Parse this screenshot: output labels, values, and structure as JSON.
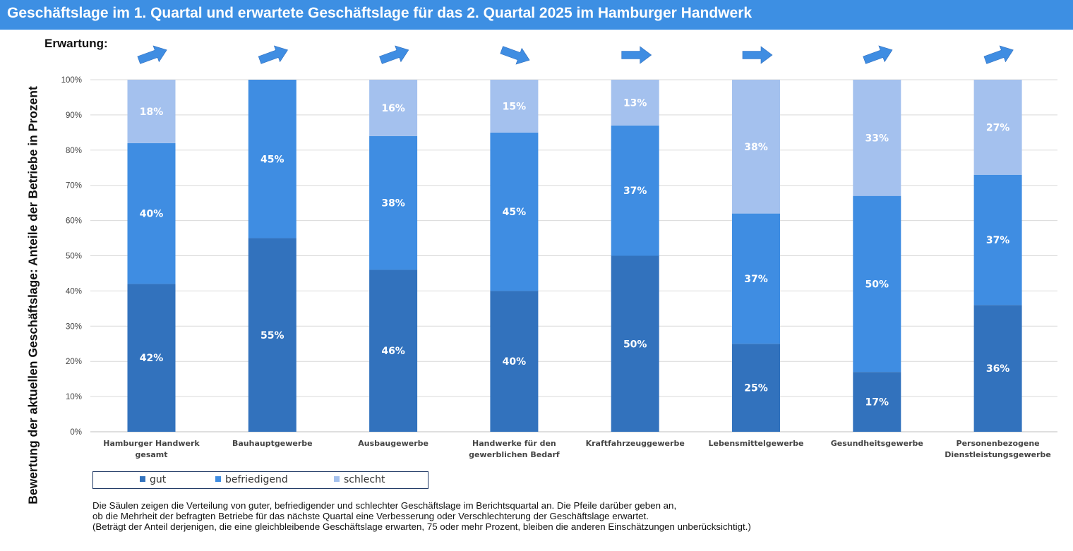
{
  "header": {
    "title": "Geschäftslage im 1. Quartal und erwartete Geschäftslage für das 2. Quartal 2025 im Hamburger Handwerk"
  },
  "expectation_label": "Erwartung:",
  "colors": {
    "header_bg": "#3d8fe3",
    "gut": "#3272bd",
    "befriedigend": "#3f8de2",
    "schlecht": "#a4c1ee",
    "arrow": "#3f8de2",
    "grid": "#d9d9d9"
  },
  "footnote": {
    "line1": "Die Säulen zeigen die Verteilung von guter, befriedigender und schlechter Geschäftslage im Berichtsquartal an. Die Pfeile darüber geben an,",
    "line2": "ob die Mehrheit der befragten Betriebe für das nächste Quartal eine Verbesserung oder Verschlechterung der Geschäftslage erwartet.",
    "line3": "(Beträgt der Anteil derjenigen, die eine gleichbleibende Geschäftslage erwarten, 75 oder mehr Prozent,  bleiben die anderen Einschätzungen unberücksichtigt.)"
  },
  "chart_data": {
    "type": "bar",
    "stacked": true,
    "title": "Geschäftslage im 1. Quartal und erwartete Geschäftslage für das 2. Quartal 2025 im Hamburger Handwerk",
    "ylabel": "Bewertung der aktuellen Geschäftslage: Anteile der Betriebe in Prozent",
    "ylim": [
      0,
      100
    ],
    "yticks": [
      "0%",
      "10%",
      "20%",
      "30%",
      "40%",
      "50%",
      "60%",
      "70%",
      "80%",
      "90%",
      "100%"
    ],
    "grid": true,
    "legend_position": "bottom-left",
    "categories": [
      [
        "Hamburger Handwerk",
        "gesamt"
      ],
      [
        "Bauhauptgewerbe"
      ],
      [
        "Ausbaugewerbe"
      ],
      [
        "Handwerke für den",
        "gewerblichen Bedarf"
      ],
      [
        "Kraftfahrzeuggewerbe"
      ],
      [
        "Lebensmittelgewerbe"
      ],
      [
        "Gesundheitsgewerbe"
      ],
      [
        "Personenbezogene",
        "Dienstleistungsgewerbe"
      ]
    ],
    "series": [
      {
        "name": "gut",
        "values": [
          42,
          55,
          46,
          40,
          50,
          25,
          17,
          36
        ],
        "labels": [
          "42%",
          "55%",
          "46%",
          "40%",
          "50%",
          "25%",
          "17%",
          "36%"
        ]
      },
      {
        "name": "befriedigend",
        "values": [
          40,
          45,
          38,
          45,
          37,
          37,
          50,
          37
        ],
        "labels": [
          "40%",
          "45%",
          "38%",
          "45%",
          "37%",
          "37%",
          "50%",
          "37%"
        ]
      },
      {
        "name": "schlecht",
        "values": [
          18,
          0,
          16,
          15,
          13,
          38,
          33,
          27
        ],
        "labels": [
          "18%",
          "",
          "16%",
          "15%",
          "13%",
          "38%",
          "33%",
          "27%"
        ]
      }
    ],
    "expectation_arrows": [
      "up",
      "up",
      "up",
      "down",
      "flat",
      "flat",
      "up",
      "up"
    ]
  }
}
